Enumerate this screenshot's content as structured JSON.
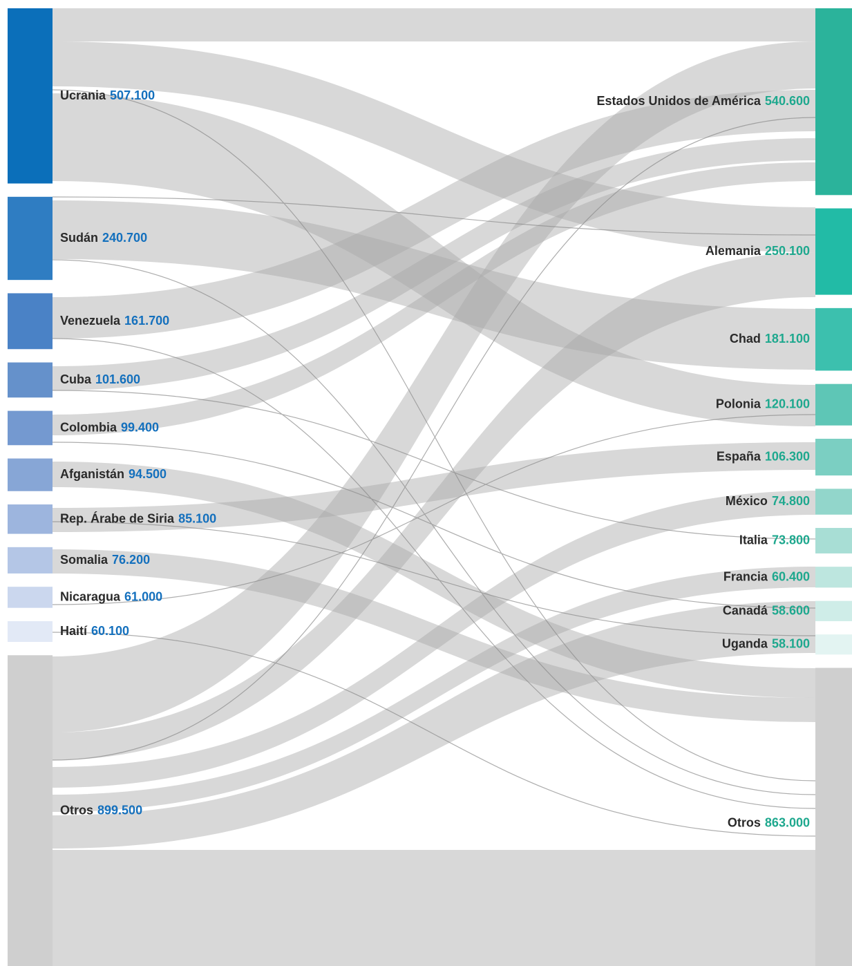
{
  "chart_data": {
    "type": "sankey",
    "sources": {
      "names": [
        "Ucrania",
        "Sudán",
        "Venezuela",
        "Cuba",
        "Colombia",
        "Afganistán",
        "Rep. Árabe de Siria",
        "Somalia",
        "Nicaragua",
        "Haití",
        "Otros"
      ],
      "values": [
        507100,
        240700,
        161700,
        101600,
        99400,
        94500,
        85100,
        76200,
        61000,
        60100,
        899500
      ],
      "value_labels": [
        "507.100",
        "240.700",
        "161.700",
        "101.600",
        "99.400",
        "94.500",
        "85.100",
        "76.200",
        "61.000",
        "60.100",
        "899.500"
      ],
      "colors": [
        "#0b6fba",
        "#2f7dc2",
        "#4a82c6",
        "#6591cb",
        "#7499d0",
        "#87a6d6",
        "#9db5de",
        "#b4c6e6",
        "#cbd7ee",
        "#e2e9f6",
        "#cfcfcf"
      ],
      "label_color": "#1470bd"
    },
    "targets": {
      "names": [
        "Estados Unidos de América",
        "Alemania",
        "Chad",
        "Polonia",
        "España",
        "México",
        "Italia",
        "Francia",
        "Canadá",
        "Uganda",
        "Otros"
      ],
      "values": [
        540600,
        250100,
        181100,
        120100,
        106300,
        74800,
        73800,
        60400,
        58600,
        58100,
        863000
      ],
      "value_labels": [
        "540.600",
        "250.100",
        "181.100",
        "120.100",
        "106.300",
        "74.800",
        "73.800",
        "60.400",
        "58.600",
        "58.100",
        "863.000"
      ],
      "colors": [
        "#2bb39b",
        "#22bba6",
        "#3cc0ae",
        "#5ec6b6",
        "#7bcfc2",
        "#92d6cb",
        "#a8ded5",
        "#bde6df",
        "#cfede8",
        "#e3f4f2",
        "#cfcfcf"
      ],
      "label_color": "#1ea88e"
    }
  }
}
